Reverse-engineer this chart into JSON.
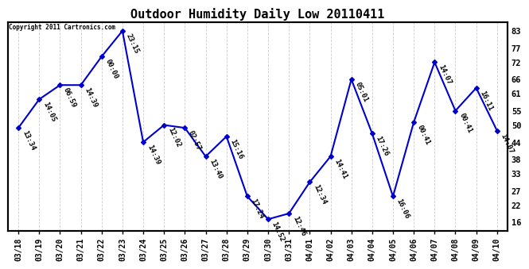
{
  "title": "Outdoor Humidity Daily Low 20110411",
  "copyright": "Copyright 2011 Cartronics.com",
  "line_color": "#0000CC",
  "bg_color": "#ffffff",
  "grid_color": "#cccccc",
  "dates": [
    "03/18",
    "03/19",
    "03/20",
    "03/21",
    "03/22",
    "03/23",
    "03/24",
    "03/25",
    "03/26",
    "03/27",
    "03/28",
    "03/29",
    "03/30",
    "03/31",
    "04/01",
    "04/02",
    "04/03",
    "04/04",
    "04/05",
    "04/06",
    "04/07",
    "04/08",
    "04/09",
    "04/10"
  ],
  "values": [
    49,
    59,
    64,
    64,
    74,
    83,
    44,
    50,
    49,
    39,
    46,
    25,
    17,
    19,
    30,
    39,
    66,
    47,
    25,
    51,
    72,
    55,
    63,
    48
  ],
  "time_labels": [
    "13:34",
    "14:05",
    "06:59",
    "14:39",
    "00:00",
    "23:15",
    "14:39",
    "12:02",
    "02:57",
    "13:40",
    "15:16",
    "17:24",
    "14:52",
    "12:46",
    "12:34",
    "14:41",
    "05:01",
    "17:26",
    "16:06",
    "00:41",
    "14:07",
    "00:41",
    "16:11",
    "14:07"
  ],
  "yticks": [
    16,
    22,
    27,
    33,
    38,
    44,
    50,
    55,
    61,
    66,
    72,
    77,
    83
  ],
  "ylim": [
    13,
    86
  ],
  "marker": "D",
  "marker_size": 3,
  "label_fontsize": 6.5,
  "title_fontsize": 11,
  "xtick_fontsize": 7,
  "ytick_fontsize": 7.5
}
